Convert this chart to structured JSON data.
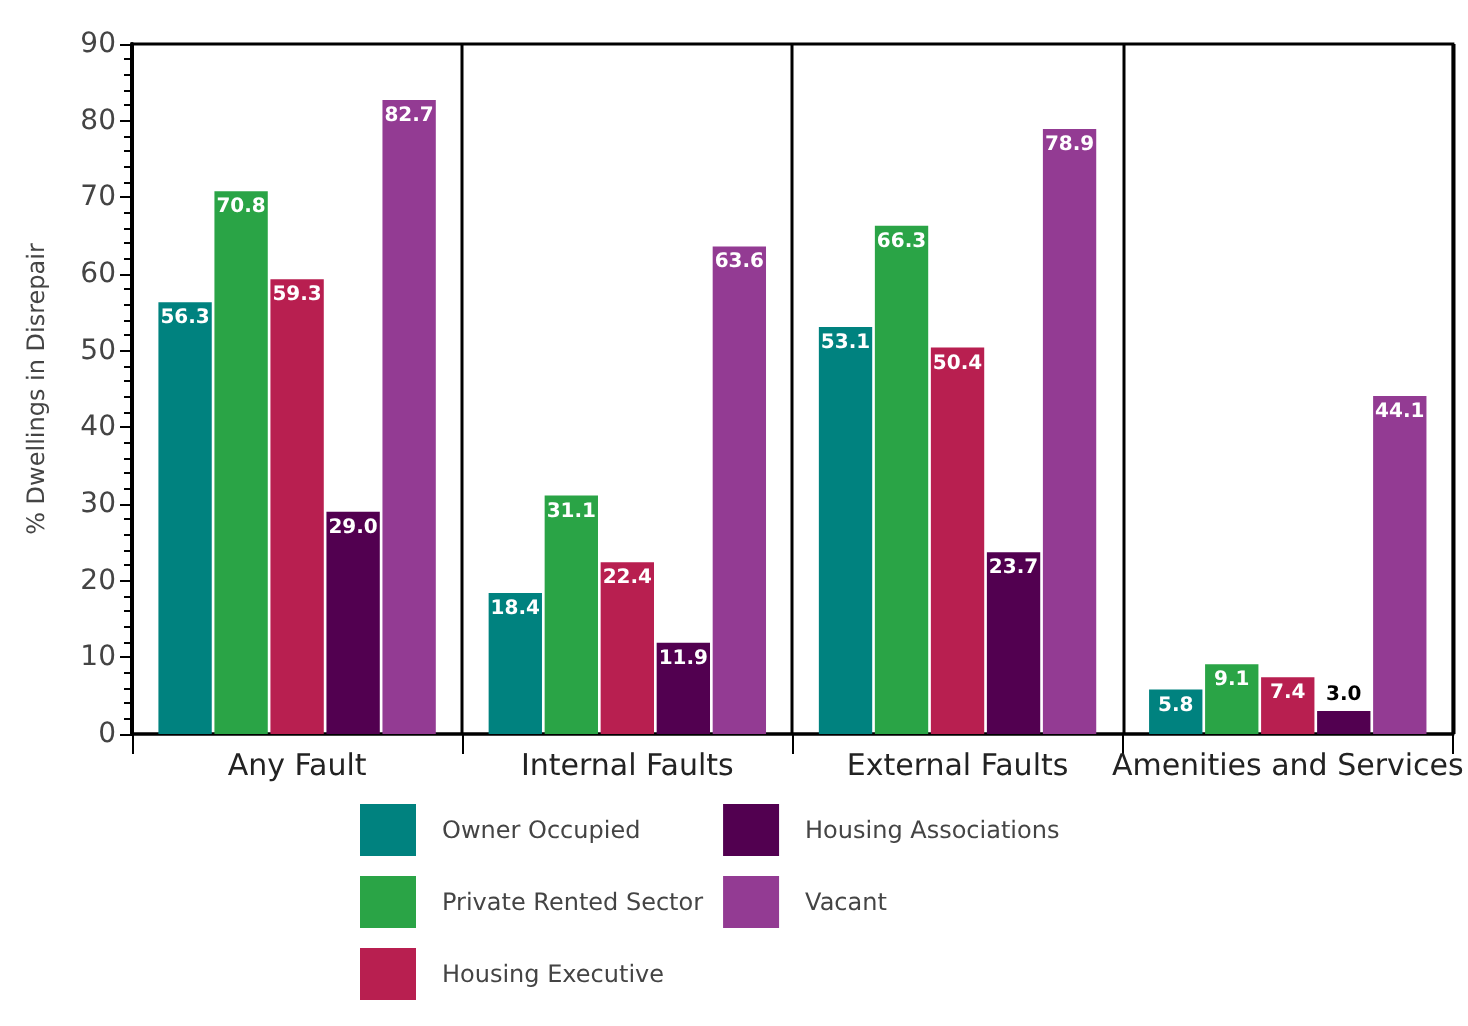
{
  "chart_data": {
    "type": "bar",
    "ylabel": "% Dwellings in Disrepair",
    "categories": [
      "Any Fault",
      "Internal Faults",
      "External Faults",
      "Amenities and Services"
    ],
    "series": [
      {
        "name": "Owner Occupied",
        "color": "#00827f",
        "values": [
          56.3,
          18.4,
          53.1,
          5.8
        ],
        "value_labels": [
          "56.3",
          "18.4",
          "53.1",
          "5.8"
        ]
      },
      {
        "name": "Private Rented Sector",
        "color": "#2aa446",
        "values": [
          70.8,
          31.1,
          66.3,
          9.1
        ],
        "value_labels": [
          "70.8",
          "31.1",
          "66.3",
          "9.1"
        ]
      },
      {
        "name": "Housing Executive",
        "color": "#b81f50",
        "values": [
          59.3,
          22.4,
          50.4,
          7.4
        ],
        "value_labels": [
          "59.3",
          "22.4",
          "50.4",
          "7.4"
        ]
      },
      {
        "name": "Housing Associations",
        "color": "#520050",
        "values": [
          29.0,
          11.9,
          23.7,
          3.0
        ],
        "value_labels": [
          "29.0",
          "11.9",
          "23.7",
          "3.0"
        ]
      },
      {
        "name": "Vacant",
        "color": "#933b93",
        "values": [
          82.7,
          63.6,
          78.9,
          44.1
        ],
        "value_labels": [
          "82.7",
          "63.6",
          "78.9",
          "44.1"
        ]
      }
    ],
    "ylim": [
      0,
      90
    ],
    "yticks": [
      0,
      10,
      20,
      30,
      40,
      50,
      60,
      70,
      80,
      90
    ],
    "grid": "x",
    "legend": "bottom"
  }
}
